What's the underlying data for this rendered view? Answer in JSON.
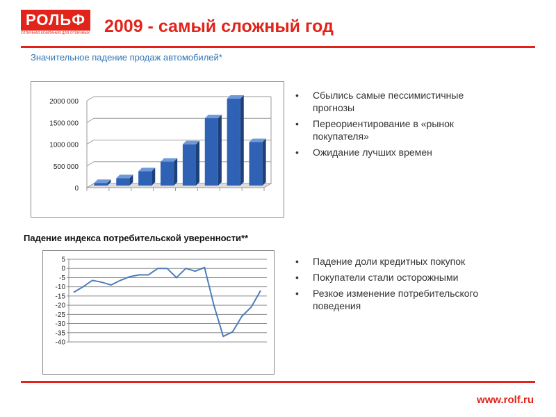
{
  "logo": {
    "text": "РОЛЬФ",
    "tagline": "ОТЛИЧНАЯ КОМПАНИЯ ДЛЯ ОТЛИЧНЫХ ЛЮДЕЙ"
  },
  "header": {
    "title": "2009 - самый сложный год"
  },
  "section1": {
    "subtitle": "Значительное падение продаж автомобилей*"
  },
  "bullets1": [
    "Сбылись самые пессимистичные прогнозы",
    "Переориентирование в «рынок покупателя»",
    "Ожидание лучших времен"
  ],
  "section2": {
    "title": "Падение индекса потребительской уверенности**"
  },
  "bullets2": [
    "Падение доли кредитных покупок",
    "Покупатели стали осторожными",
    "Резкое изменение потребительского поведения"
  ],
  "footer": {
    "url": "www.rolf.ru"
  },
  "colors": {
    "accent": "#e2231a",
    "subtitle": "#2e75b6",
    "bar": "#2f62b5",
    "line": "#4a7ebb"
  },
  "chart_data": [
    {
      "type": "bar",
      "categories": [
        "",
        "",
        "",
        "",
        "",
        "",
        "",
        ""
      ],
      "values": [
        60000,
        170000,
        330000,
        550000,
        950000,
        1550000,
        2000000,
        1000000
      ],
      "ylim": [
        0,
        2000000
      ],
      "yticks": [
        "0",
        "500 000",
        "1000 000",
        "1500 000",
        "2000 000"
      ],
      "ytick_values": [
        0,
        500000,
        1000000,
        1500000,
        2000000
      ],
      "grid": true
    },
    {
      "type": "line",
      "values": [
        -13,
        -10,
        -6.5,
        -7.5,
        -9,
        -6.5,
        -4.5,
        -3.5,
        -3.5,
        0,
        0,
        -5,
        0,
        -1.5,
        0.5,
        -20,
        -37,
        -34.5,
        -26,
        -21,
        -12
      ],
      "ylim": [
        -40,
        5
      ],
      "yticks": [
        "5",
        "0",
        "-5",
        "-10",
        "-15",
        "-20",
        "-25",
        "-30",
        "-35",
        "-40"
      ],
      "ytick_values": [
        5,
        0,
        -5,
        -10,
        -15,
        -20,
        -25,
        -30,
        -35,
        -40
      ],
      "grid": true
    }
  ]
}
